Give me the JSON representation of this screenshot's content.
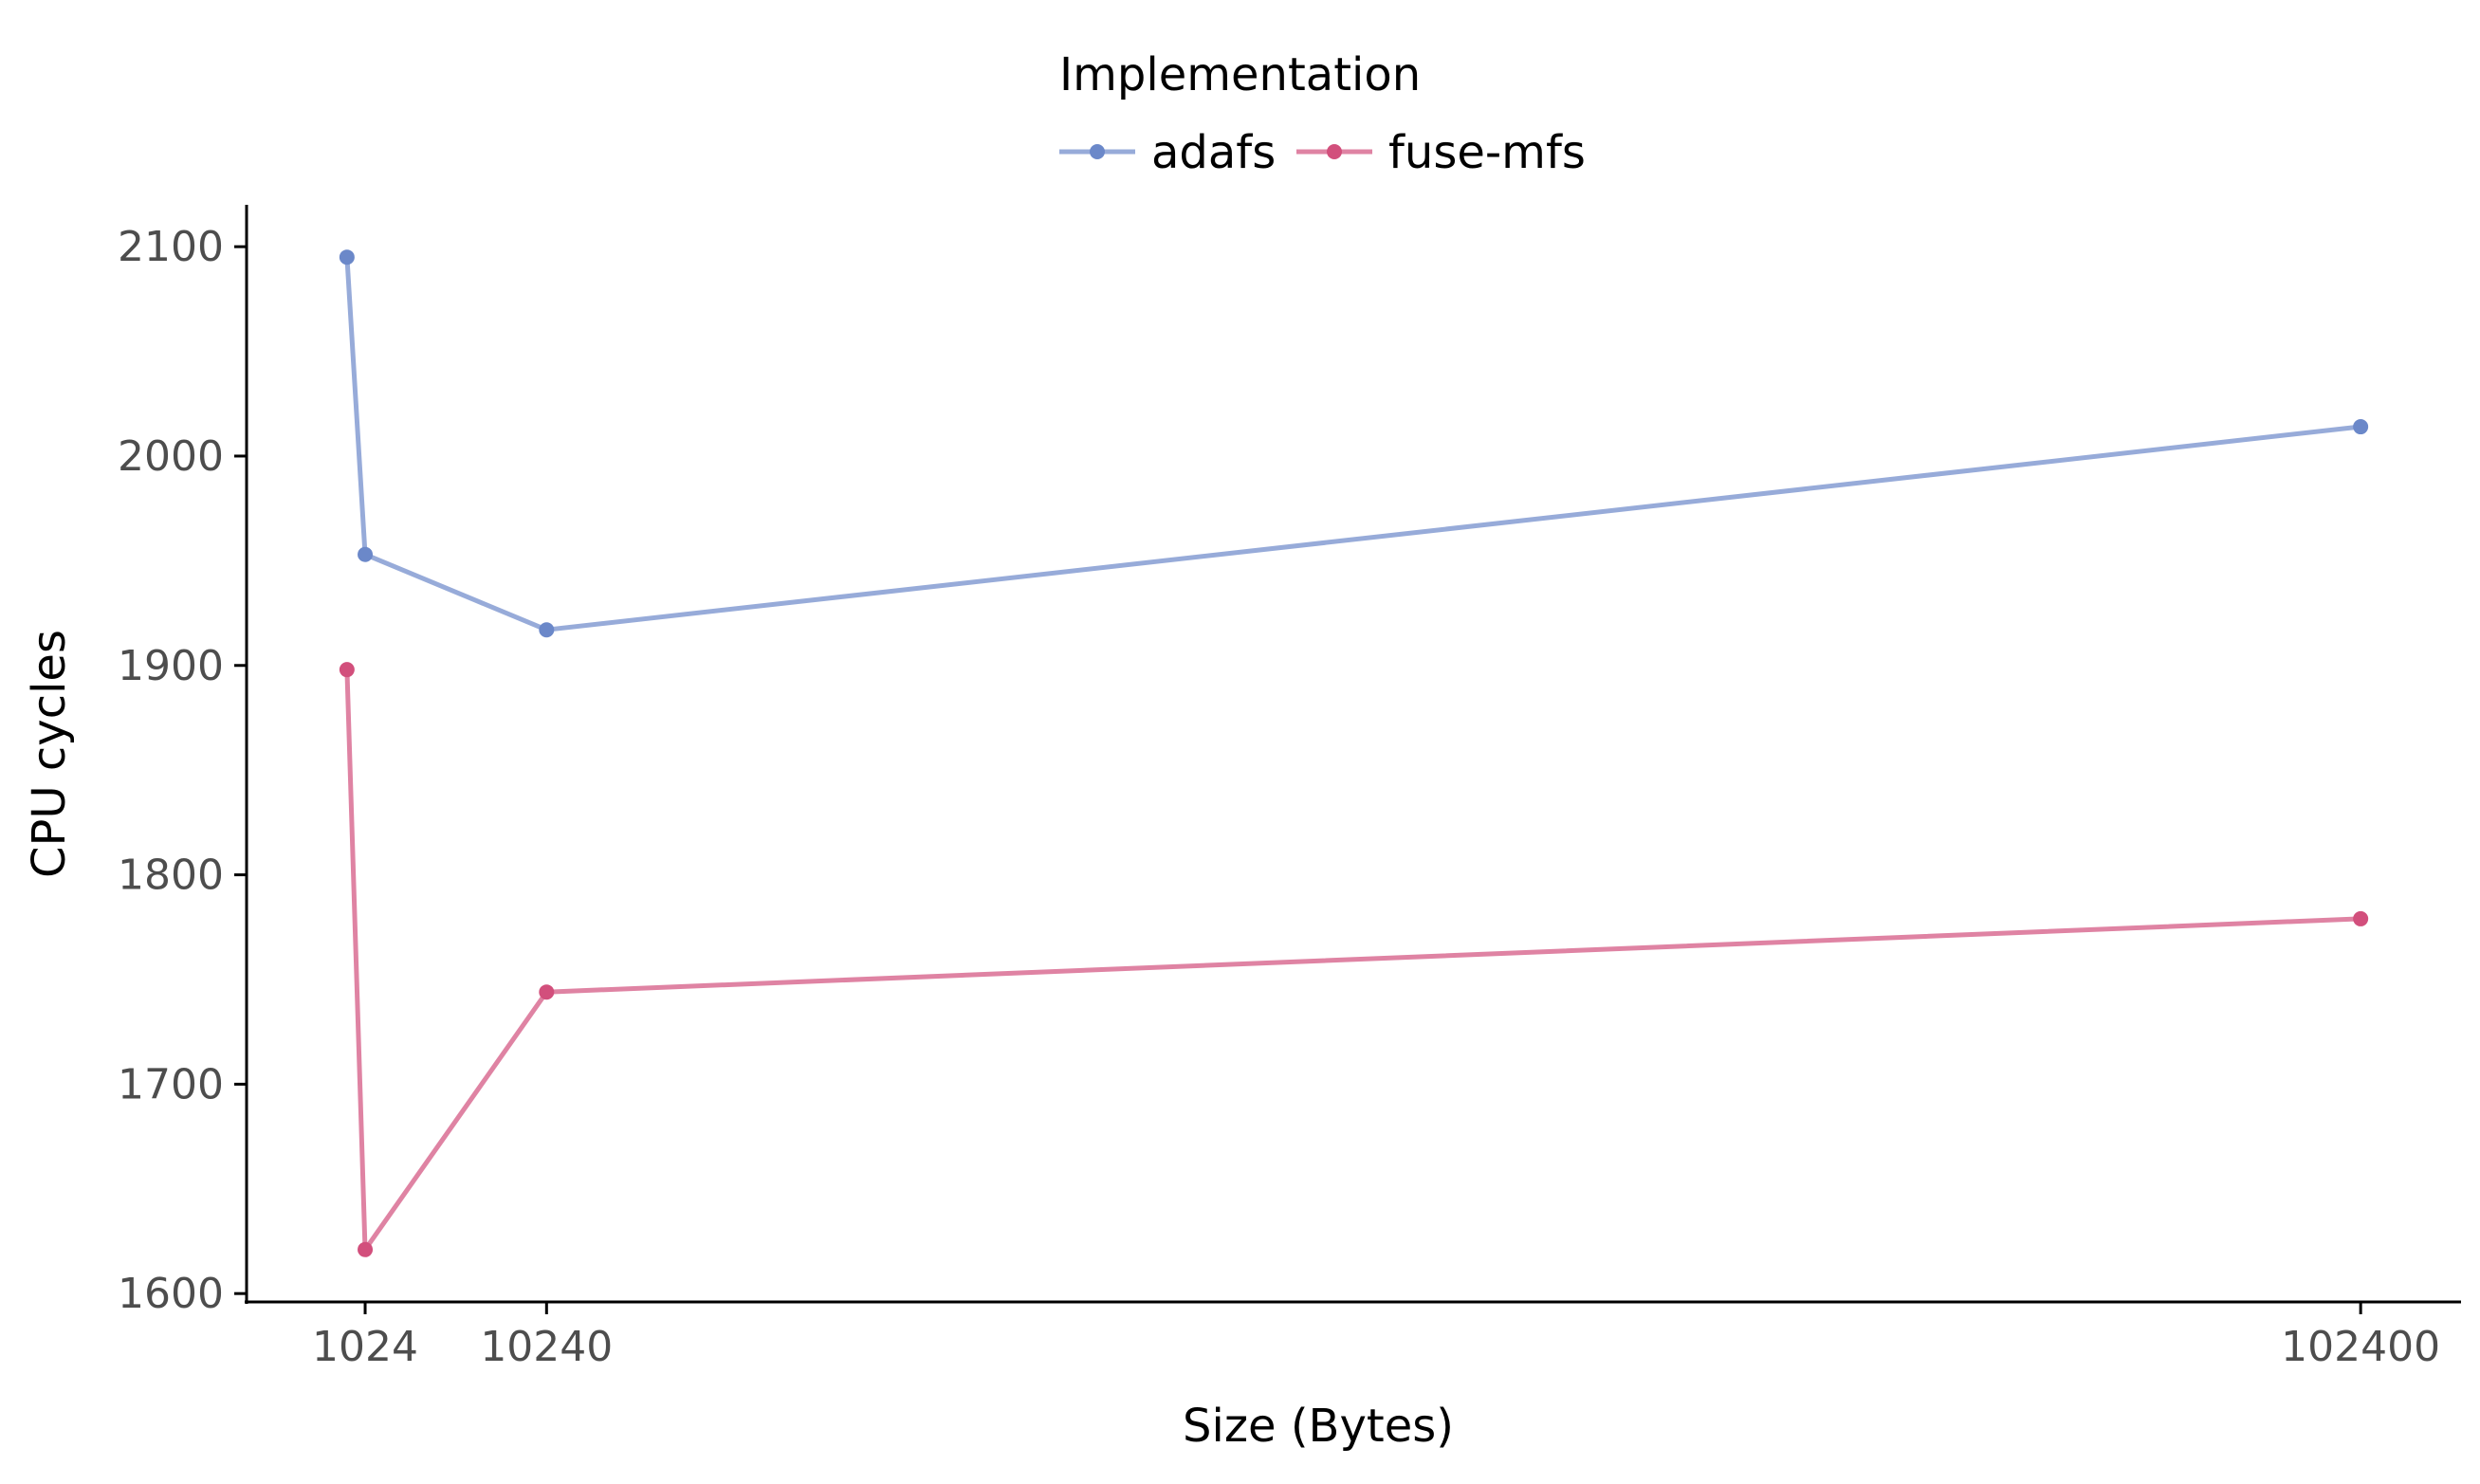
{
  "chart_data": {
    "type": "line",
    "title": "",
    "xlabel": "Size (Bytes)",
    "ylabel": "CPU cycles",
    "x_ticks": [
      1024,
      10240,
      102400
    ],
    "x_tick_labels": [
      "1024",
      "10240",
      "102400"
    ],
    "y_ticks": [
      1600,
      1700,
      1800,
      1900,
      2000,
      2100
    ],
    "y_tick_labels": [
      "1600",
      "1700",
      "1800",
      "1900",
      "2000",
      "2100"
    ],
    "xlim": [
      -5000,
      107500
    ],
    "ylim": [
      1596,
      2120
    ],
    "grid": false,
    "legend": {
      "title": "Implementation",
      "placement": "top"
    },
    "series": [
      {
        "name": "adafs",
        "color": "#6b88c9",
        "points": [
          {
            "x": 100,
            "y": 2095
          },
          {
            "x": 1024,
            "y": 1953
          },
          {
            "x": 10240,
            "y": 1917
          },
          {
            "x": 102400,
            "y": 2014
          }
        ]
      },
      {
        "name": "fuse-mfs",
        "color": "#d24f7c",
        "points": [
          {
            "x": 100,
            "y": 1898
          },
          {
            "x": 1024,
            "y": 1621
          },
          {
            "x": 10240,
            "y": 1744
          },
          {
            "x": 102400,
            "y": 1779
          }
        ]
      }
    ]
  }
}
